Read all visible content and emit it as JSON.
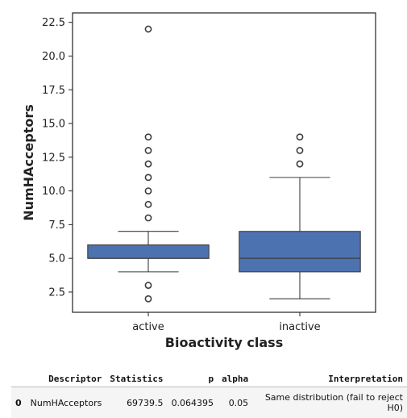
{
  "chart_data": {
    "type": "box",
    "xlabel": "Bioactivity class",
    "ylabel": "NumHAcceptors",
    "ylim": [
      1.0,
      23.2
    ],
    "yticks": [
      2.5,
      5.0,
      7.5,
      10.0,
      12.5,
      15.0,
      17.5,
      20.0,
      22.5
    ],
    "grid": false,
    "box_color": "#4c72b0",
    "series": [
      {
        "category": "active",
        "whisker_low": 4,
        "q1": 5,
        "median": 5,
        "q3": 6,
        "whisker_high": 7,
        "outliers": [
          2,
          3,
          8,
          9,
          10,
          11,
          12,
          13,
          14,
          22
        ]
      },
      {
        "category": "inactive",
        "whisker_low": 2,
        "q1": 4,
        "median": 5,
        "q3": 7,
        "whisker_high": 11,
        "outliers": [
          12,
          13,
          14
        ]
      }
    ]
  },
  "stats_table": {
    "headers": [
      "Descriptor",
      "Statistics",
      "p",
      "alpha",
      "Interpretation"
    ],
    "rows": [
      {
        "index": "0",
        "descriptor": "NumHAcceptors",
        "statistics": "69739.5",
        "p": "0.064395",
        "alpha": "0.05",
        "interpretation": "Same distribution (fail to reject H0)"
      }
    ]
  }
}
